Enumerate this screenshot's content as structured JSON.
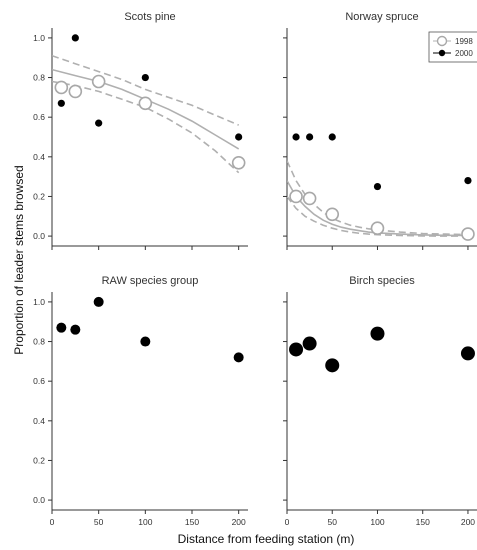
{
  "figure": {
    "xlabel": "Distance from feeding station (m)",
    "ylabel": "Proportion of leader stems browsed"
  },
  "chart_data": [
    {
      "type": "scatter",
      "title": "Scots pine",
      "xlim": [
        0,
        210
      ],
      "ylim": [
        -0.05,
        1.05
      ],
      "xticks": [
        0,
        50,
        100,
        150,
        200
      ],
      "yticks": [
        "0.0",
        "0.2",
        "0.4",
        "0.6",
        "0.8",
        "1.0"
      ],
      "show_xticks_labels": false,
      "show_yticks_labels": true,
      "series": [
        {
          "name": "1998",
          "style": "open",
          "x": [
            10,
            25,
            50,
            100,
            200
          ],
          "y": [
            0.75,
            0.73,
            0.78,
            0.67,
            0.37
          ]
        },
        {
          "name": "2000",
          "style": "filled",
          "x": [
            10,
            25,
            50,
            100,
            200
          ],
          "y": [
            0.67,
            1.0,
            0.57,
            0.8,
            0.5
          ]
        }
      ],
      "fit": {
        "x": [
          0,
          25,
          50,
          75,
          100,
          125,
          150,
          175,
          200
        ],
        "y": [
          0.84,
          0.81,
          0.78,
          0.74,
          0.69,
          0.64,
          0.58,
          0.51,
          0.44
        ],
        "lower": [
          0.78,
          0.76,
          0.73,
          0.69,
          0.65,
          0.59,
          0.52,
          0.43,
          0.32
        ],
        "upper": [
          0.91,
          0.87,
          0.83,
          0.79,
          0.74,
          0.7,
          0.66,
          0.61,
          0.56
        ]
      }
    },
    {
      "type": "scatter",
      "title": "Norway spruce",
      "xlim": [
        0,
        210
      ],
      "ylim": [
        -0.05,
        1.05
      ],
      "xticks": [
        0,
        50,
        100,
        150,
        200
      ],
      "yticks": [
        "0.0",
        "0.2",
        "0.4",
        "0.6",
        "0.8",
        "1.0"
      ],
      "show_xticks_labels": false,
      "show_yticks_labels": false,
      "legend": {
        "position": "top-right",
        "entries": [
          {
            "label": "1998",
            "style": "open"
          },
          {
            "label": "2000",
            "style": "filled"
          }
        ]
      },
      "series": [
        {
          "name": "1998",
          "style": "open",
          "x": [
            10,
            25,
            50,
            100,
            200
          ],
          "y": [
            0.2,
            0.19,
            0.11,
            0.04,
            0.01
          ]
        },
        {
          "name": "2000",
          "style": "filled",
          "x": [
            10,
            25,
            50,
            100,
            200
          ],
          "y": [
            0.5,
            0.5,
            0.5,
            0.25,
            0.28
          ]
        }
      ],
      "fit": {
        "x": [
          0,
          10,
          20,
          30,
          40,
          50,
          60,
          70,
          80,
          90,
          100,
          125,
          150,
          175,
          200
        ],
        "y": [
          0.28,
          0.2,
          0.15,
          0.11,
          0.08,
          0.06,
          0.045,
          0.035,
          0.027,
          0.02,
          0.016,
          0.01,
          0.006,
          0.004,
          0.003
        ],
        "lower": [
          0.2,
          0.14,
          0.1,
          0.075,
          0.055,
          0.04,
          0.028,
          0.02,
          0.014,
          0.01,
          0.007,
          0.003,
          0.001,
          0.0,
          0.0
        ],
        "upper": [
          0.38,
          0.28,
          0.21,
          0.16,
          0.12,
          0.09,
          0.07,
          0.055,
          0.045,
          0.037,
          0.031,
          0.02,
          0.013,
          0.01,
          0.008
        ]
      }
    },
    {
      "type": "scatter",
      "title": "RAW species group",
      "xlim": [
        0,
        210
      ],
      "ylim": [
        -0.05,
        1.05
      ],
      "xticks": [
        0,
        50,
        100,
        150,
        200
      ],
      "yticks": [
        "0.0",
        "0.2",
        "0.4",
        "0.6",
        "0.8",
        "1.0"
      ],
      "show_xticks_labels": true,
      "show_yticks_labels": true,
      "series": [
        {
          "name": "2000",
          "style": "filled",
          "x": [
            10,
            25,
            50,
            100,
            200
          ],
          "y": [
            0.87,
            0.86,
            1.0,
            0.8,
            0.72
          ],
          "size": [
            5,
            5,
            5,
            5,
            5
          ]
        }
      ]
    },
    {
      "type": "scatter",
      "title": "Birch species",
      "xlim": [
        0,
        210
      ],
      "ylim": [
        -0.05,
        1.05
      ],
      "xticks": [
        0,
        50,
        100,
        150,
        200
      ],
      "yticks": [
        "0.0",
        "0.2",
        "0.4",
        "0.6",
        "0.8",
        "1.0"
      ],
      "show_xticks_labels": true,
      "show_yticks_labels": false,
      "series": [
        {
          "name": "2000",
          "style": "filled",
          "x": [
            10,
            25,
            50,
            100,
            200
          ],
          "y": [
            0.76,
            0.79,
            0.68,
            0.84,
            0.74
          ],
          "size": [
            7,
            7,
            7,
            7,
            7
          ]
        }
      ]
    }
  ]
}
